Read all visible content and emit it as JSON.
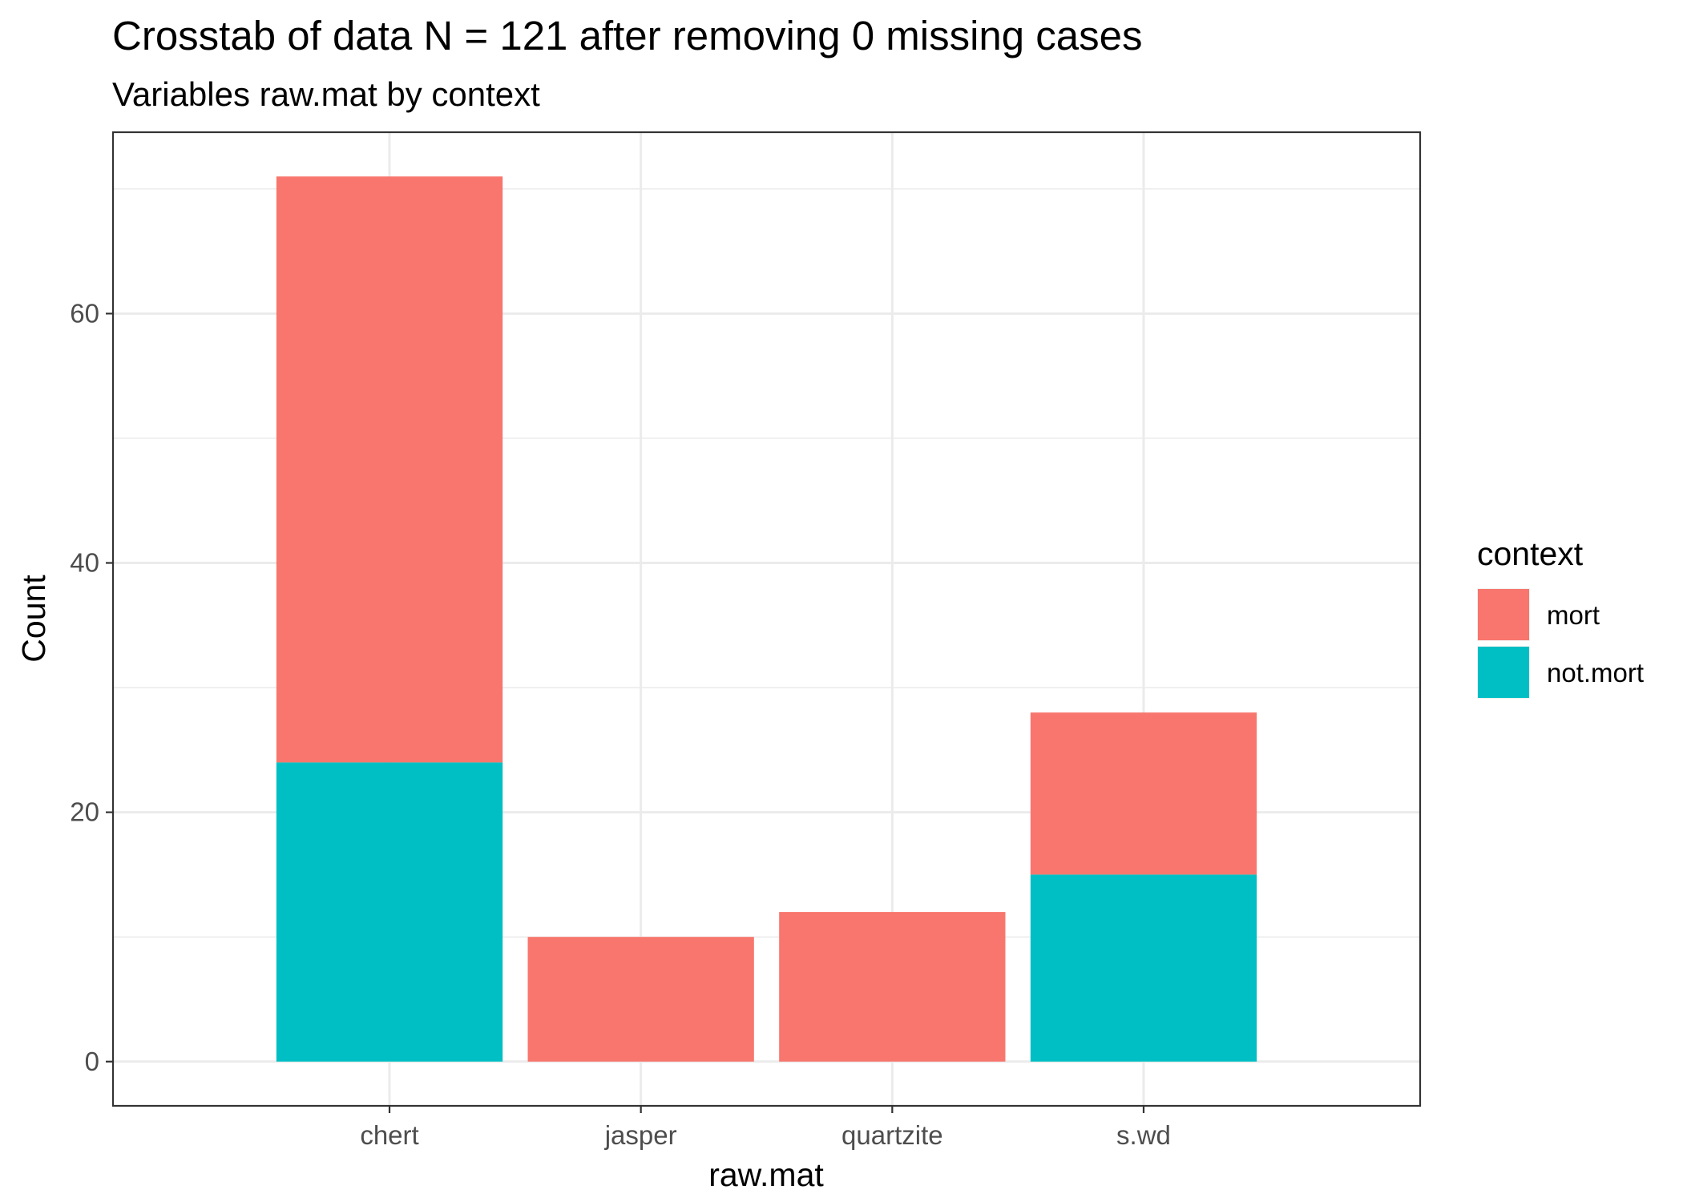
{
  "chart_data": {
    "type": "bar",
    "stacked": true,
    "title": "Crosstab of data N = 121 after removing 0 missing cases",
    "subtitle": "Variables raw.mat by context",
    "xlabel": "raw.mat",
    "ylabel": "Count",
    "categories": [
      "chert",
      "jasper",
      "quartzite",
      "s.wd"
    ],
    "series": [
      {
        "name": "mort",
        "color": "#F8766D",
        "values": [
          47,
          10,
          12,
          13
        ]
      },
      {
        "name": "not.mort",
        "color": "#00BFC4",
        "values": [
          24,
          0,
          0,
          15
        ]
      }
    ],
    "y_ticks": [
      0,
      20,
      40,
      60
    ],
    "ylim": [
      -3.55,
      74.55
    ],
    "legend": {
      "title": "context",
      "position": "right"
    },
    "grid": true
  }
}
